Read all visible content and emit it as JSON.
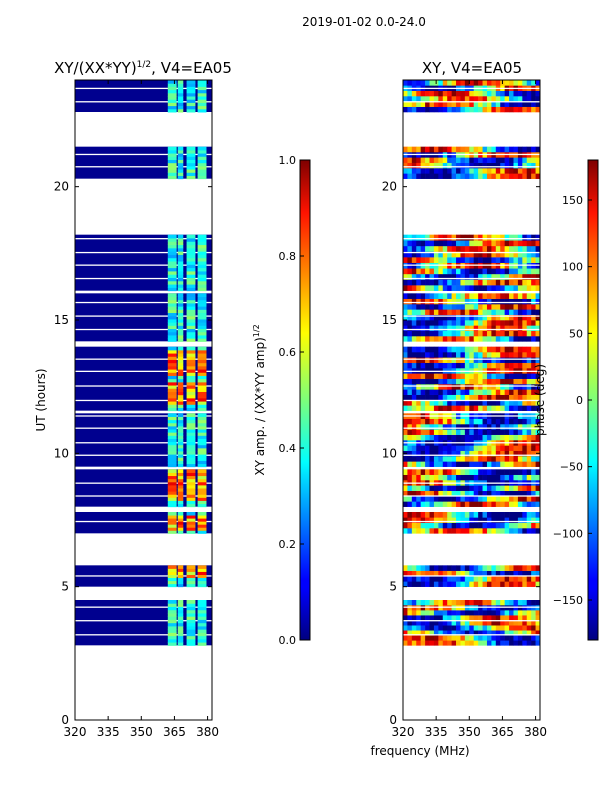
{
  "chart_data": [
    {
      "type": "heatmap",
      "suptitle": "2019-01-02 0.0-24.0",
      "title": "XY/(XX*YY)",
      "title_exponent": "1/2",
      "title_suffix": ", V4=EA05",
      "xlabel": "",
      "ylabel": "UT (hours)",
      "xlim": [
        320,
        382
      ],
      "ylim": [
        0,
        24
      ],
      "xticks": [
        320,
        335,
        350,
        365,
        380
      ],
      "yticks": [
        0,
        5,
        10,
        15,
        20
      ],
      "colorbar": {
        "label": "XY amp. / (XX*YY amp)",
        "label_exponent": "1/2",
        "range": [
          0.0,
          1.0
        ],
        "ticks": [
          "0.0",
          "0.2",
          "0.4",
          "0.6",
          "0.8",
          "1.0"
        ]
      },
      "data_bands_hours": [
        [
          2.8,
          4.5
        ],
        [
          5.0,
          5.8
        ],
        [
          7.0,
          7.8
        ],
        [
          8.0,
          9.4
        ],
        [
          9.5,
          11.5
        ],
        [
          11.6,
          14.0
        ],
        [
          14.2,
          16.0
        ],
        [
          16.1,
          18.2
        ],
        [
          20.3,
          21.5
        ],
        [
          22.8,
          24.0
        ]
      ],
      "bright_channels_mhz": [
        [
          362,
          366
        ],
        [
          366.5,
          369
        ],
        [
          370.5,
          374.5
        ],
        [
          375.5,
          379.5
        ]
      ],
      "strong_amp_bands_hours": [
        [
          5.3,
          5.7
        ],
        [
          7.1,
          7.6
        ],
        [
          8.2,
          9.3
        ],
        [
          11.8,
          12.6
        ],
        [
          12.9,
          13.8
        ]
      ]
    },
    {
      "type": "heatmap",
      "title": "XY, V4=EA05",
      "xlabel": "frequency (MHz)",
      "ylabel": "",
      "xlim": [
        320,
        382
      ],
      "ylim": [
        0,
        24
      ],
      "xticks": [
        320,
        335,
        350,
        365,
        380
      ],
      "yticks": [
        0,
        5,
        10,
        15,
        20
      ],
      "colorbar": {
        "label": "phase (deg)",
        "range": [
          -180,
          180
        ],
        "ticks": [
          "150",
          "100",
          "50",
          "0",
          "−50",
          "−100",
          "−150"
        ]
      }
    }
  ]
}
